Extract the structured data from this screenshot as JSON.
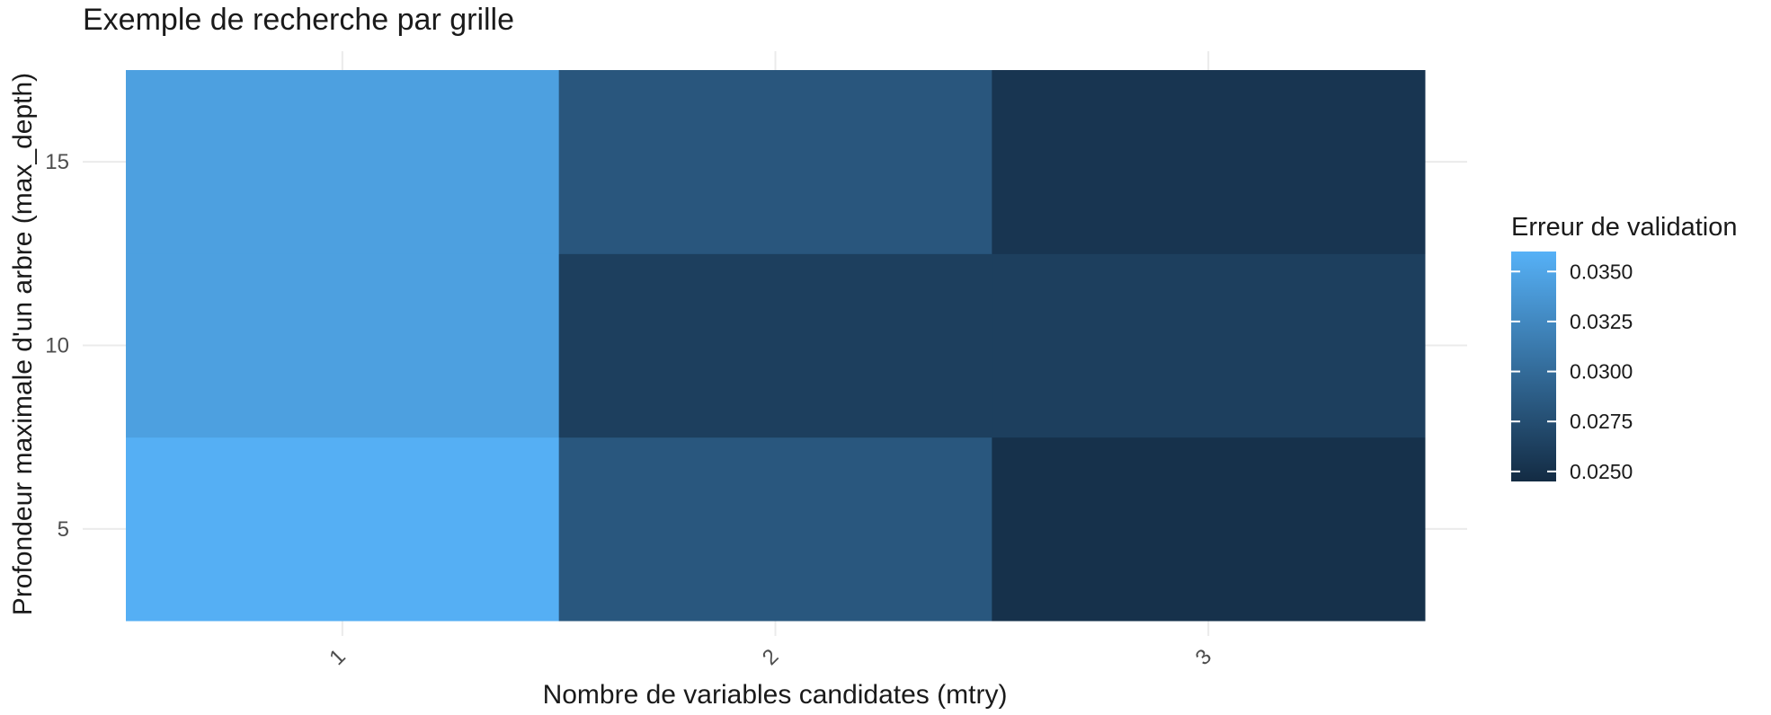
{
  "chart_data": {
    "type": "heatmap",
    "title": "Exemple de recherche par grille",
    "xlabel": "Nombre de variables candidates (mtry)",
    "ylabel": "Profondeur maximale d'un arbre (max_depth)",
    "x_categories": [
      "1",
      "2",
      "3"
    ],
    "y_categories": [
      "5",
      "10",
      "15"
    ],
    "cells": [
      {
        "x": "1",
        "y": "5",
        "value": 0.0358
      },
      {
        "x": "2",
        "y": "5",
        "value": 0.0283
      },
      {
        "x": "3",
        "y": "5",
        "value": 0.025
      },
      {
        "x": "1",
        "y": "10",
        "value": 0.0345
      },
      {
        "x": "2",
        "y": "10",
        "value": 0.0262
      },
      {
        "x": "3",
        "y": "10",
        "value": 0.0262
      },
      {
        "x": "1",
        "y": "15",
        "value": 0.0345
      },
      {
        "x": "2",
        "y": "15",
        "value": 0.0282
      },
      {
        "x": "3",
        "y": "15",
        "value": 0.0254
      }
    ],
    "color_scale": {
      "low_color": "#132B43",
      "high_color": "#56B1F7",
      "min": 0.0245,
      "max": 0.036
    },
    "legend": {
      "title": "Erreur de validation",
      "position": "right",
      "breaks": [
        0.035,
        0.0325,
        0.03,
        0.0275,
        0.025
      ],
      "labels": [
        "0.0350",
        "0.0325",
        "0.0300",
        "0.0275",
        "0.0250"
      ]
    },
    "grid": true,
    "x_tick_rotation": "-45"
  }
}
